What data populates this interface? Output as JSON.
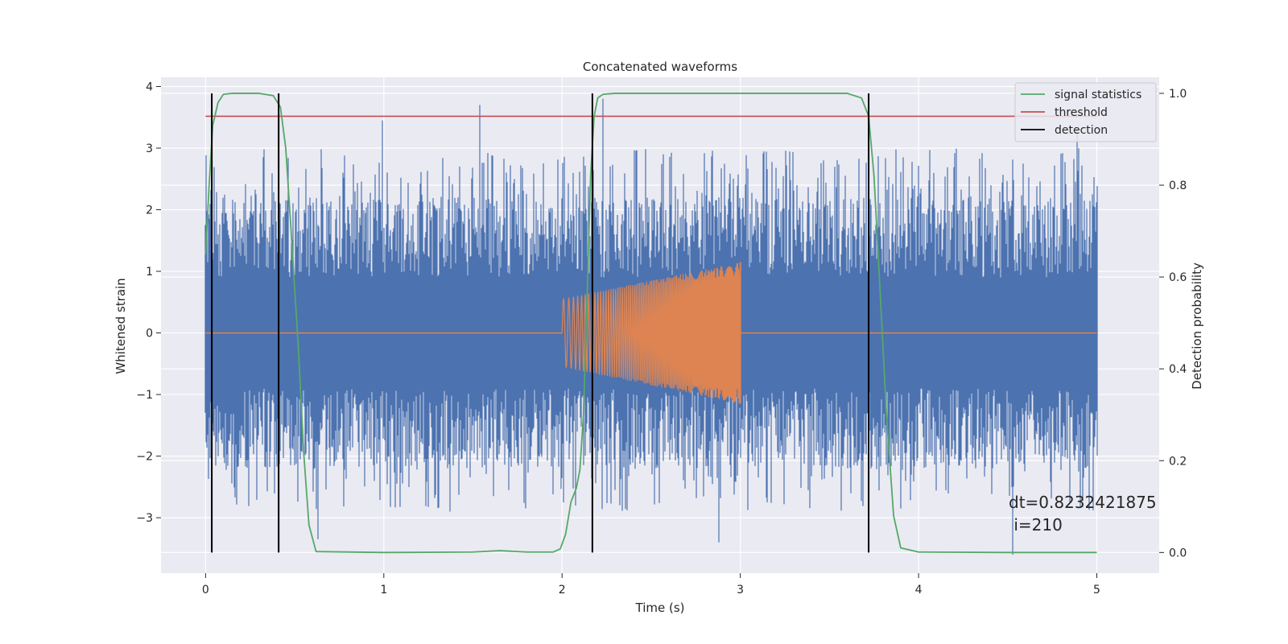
{
  "chart_data": {
    "type": "line",
    "title": "Concatenated waveforms",
    "xlabel": "Time (s)",
    "ylabel": "Whitened strain",
    "ylabel_right": "Detection probability",
    "xlim": [
      -0.25,
      5.35
    ],
    "ylim": [
      -3.9,
      4.15
    ],
    "ylim_right": [
      -0.045,
      1.035
    ],
    "x_ticks": [
      "0",
      "1",
      "2",
      "3",
      "4",
      "5"
    ],
    "y_ticks": [
      "4",
      "3",
      "2",
      "1",
      "0",
      "−1",
      "−2",
      "−3"
    ],
    "y_ticks_right": [
      "1.0",
      "0.8",
      "0.6",
      "0.4",
      "0.2",
      "0.0"
    ],
    "grid": true,
    "legend_position": "top-right",
    "series": [
      {
        "kind": "noise",
        "color": "#4c72b0",
        "x_range": [
          0,
          5
        ],
        "envelope_inner": 0.9,
        "typical_peak": 2.2,
        "max_peak": 3.85,
        "min_trough": -3.55,
        "notable_peaks": [
          {
            "x": 1.54,
            "y": 3.7
          },
          {
            "x": 0.99,
            "y": 3.45
          },
          {
            "x": 2.23,
            "y": 3.8
          },
          {
            "x": 4.53,
            "y": -3.6
          },
          {
            "x": 2.88,
            "y": -3.4
          },
          {
            "x": 0.63,
            "y": -3.35
          },
          {
            "x": 4.89,
            "y": 3.3
          },
          {
            "x": 1.37,
            "y": -2.9
          }
        ]
      },
      {
        "kind": "chirp",
        "color": "#dd8452",
        "x_range": [
          0,
          5
        ],
        "active_range": [
          2.0,
          3.0
        ],
        "amplitude_start": 0.55,
        "amplitude_end": 1.15,
        "baseline": 0
      },
      {
        "name": "signal statistics",
        "color": "#55a868",
        "axis": "right",
        "x": [
          0.0,
          0.02,
          0.04,
          0.07,
          0.1,
          0.15,
          0.2,
          0.3,
          0.38,
          0.42,
          0.45,
          0.48,
          0.52,
          0.55,
          0.58,
          0.62,
          1.0,
          1.5,
          1.65,
          1.8,
          1.95,
          1.99,
          2.02,
          2.05,
          2.08,
          2.1,
          2.12,
          2.14,
          2.16,
          2.18,
          2.2,
          2.23,
          2.3,
          3.0,
          3.6,
          3.68,
          3.72,
          3.75,
          3.78,
          3.82,
          3.86,
          3.9,
          4.0,
          4.5,
          5.0
        ],
        "y": [
          0.65,
          0.8,
          0.93,
          0.98,
          0.998,
          1.0,
          1.0,
          1.0,
          0.995,
          0.97,
          0.88,
          0.7,
          0.45,
          0.22,
          0.06,
          0.002,
          0.0,
          0.001,
          0.004,
          0.001,
          0.001,
          0.008,
          0.04,
          0.11,
          0.14,
          0.18,
          0.3,
          0.55,
          0.82,
          0.95,
          0.99,
          0.998,
          1.0,
          1.0,
          1.0,
          0.99,
          0.95,
          0.82,
          0.6,
          0.3,
          0.08,
          0.01,
          0.001,
          0.0,
          0.0
        ]
      },
      {
        "name": "threshold",
        "color": "#c44e52",
        "axis": "right",
        "x": [
          0,
          5
        ],
        "y": [
          0.95,
          0.95
        ]
      },
      {
        "name": "detection",
        "color": "#000000",
        "axis": "right",
        "kind": "vlines",
        "x": [
          0.035,
          0.41,
          2.17,
          3.72
        ],
        "y_range": [
          0,
          1
        ]
      }
    ],
    "annotation": {
      "line1": "dt=0.8232421875",
      "line2": " i=210",
      "x": 4.5,
      "y": -2.7
    },
    "colors": {
      "background": "#eaeaf2",
      "grid": "#ffffff",
      "noise": "#4c72b0",
      "chirp": "#dd8452",
      "signal": "#55a868",
      "threshold": "#c44e52",
      "detection": "#000000"
    }
  }
}
